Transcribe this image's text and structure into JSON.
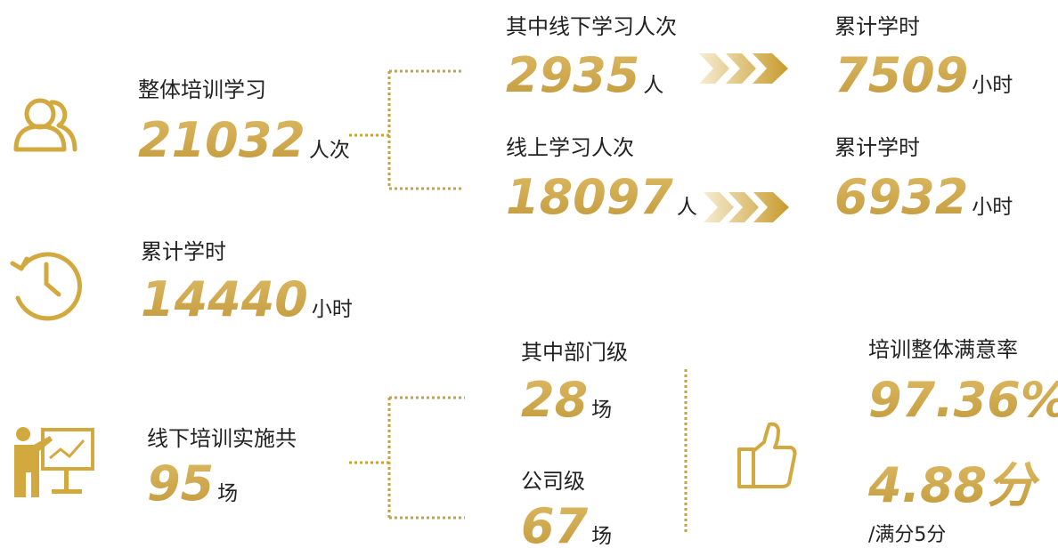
{
  "overall": {
    "label": "整体培训学习",
    "value": "21032",
    "unit": "人次"
  },
  "offline_learning": {
    "label": "其中线下学习人次",
    "value": "2935",
    "unit": "人",
    "hours_label": "累计学时",
    "hours": "7509",
    "hours_unit": "小时"
  },
  "online_learning": {
    "label": "线上学习人次",
    "value": "18097",
    "unit": "人",
    "hours_label": "累计学时",
    "hours": "6932",
    "hours_unit": "小时"
  },
  "total_hours": {
    "label": "累计学时",
    "value": "14440",
    "unit": "小时"
  },
  "offline_training": {
    "label": "线下培训实施共",
    "value": "95",
    "unit": "场"
  },
  "department": {
    "label": "其中部门级",
    "value": "28",
    "unit": "场"
  },
  "company": {
    "label": "公司级",
    "value": "67",
    "unit": "场"
  },
  "satisfaction": {
    "label": "培训整体满意率",
    "rate": "97.36%",
    "score": "4.88分",
    "note": "/满分5分"
  }
}
